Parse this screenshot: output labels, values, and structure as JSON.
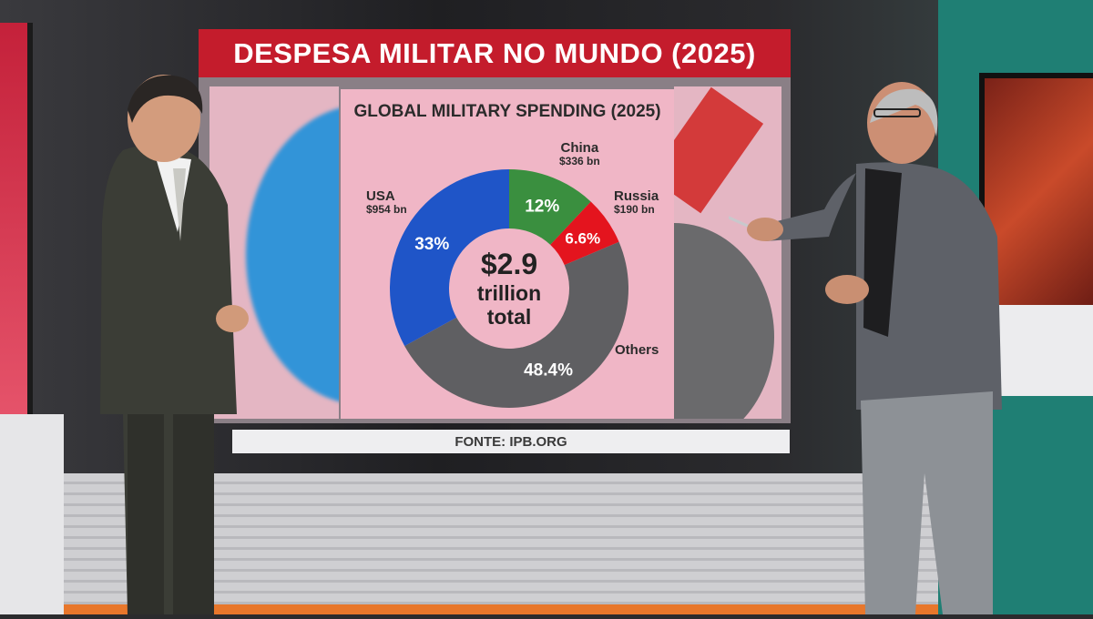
{
  "banner": {
    "title": "DESPESA MILITAR NO MUNDO (2025)"
  },
  "source": {
    "text": "FONTE: IPB.ORG"
  },
  "chart_data": {
    "type": "pie",
    "title": "GLOBAL MILITARY SPENDING (2025)",
    "center_text": [
      "$2.9",
      "trillion",
      "total"
    ],
    "total_trillion_usd": 2.9,
    "slices": [
      {
        "name": "China",
        "amount": "$336 bn",
        "percent": 12,
        "percent_label": "12%",
        "color": "#3a8f3f"
      },
      {
        "name": "Russia",
        "amount": "$190 bn",
        "percent": 6.6,
        "percent_label": "6.6%",
        "color": "#e4141e"
      },
      {
        "name": "Others",
        "amount": "",
        "percent": 48.4,
        "percent_label": "48.4%",
        "color": "#5f5f62"
      },
      {
        "name": "USA",
        "amount": "$954 bn",
        "percent": 33,
        "percent_label": "33%",
        "color": "#1f55c8"
      }
    ]
  },
  "colors": {
    "banner": "#c41c2c",
    "panel": "#f0b6c6",
    "hole": "#f0b6c6"
  }
}
